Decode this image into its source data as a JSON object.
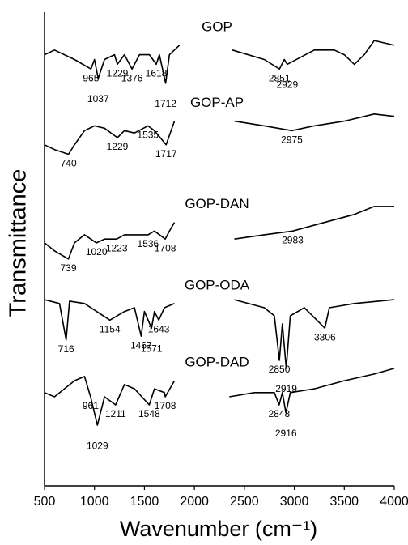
{
  "chart_data": {
    "type": "line",
    "xlabel": "Wavenumber (cm⁻¹)",
    "ylabel": "Transmittance",
    "xlim": [
      500,
      4000
    ],
    "xticks": [
      500,
      1000,
      1500,
      2000,
      2500,
      3000,
      3500,
      4000
    ],
    "ylim": [
      0,
      100
    ],
    "series": [
      {
        "name": "GOP",
        "color": "#000000",
        "x": [
          500,
          600,
          800,
          965,
          1000,
          1037,
          1100,
          1200,
          1229,
          1300,
          1376,
          1450,
          1550,
          1618,
          1650,
          1712,
          1750,
          1850,
          2100,
          2380,
          2700,
          2851,
          2900,
          2929,
          3200,
          3400,
          3500,
          3600,
          3700,
          3800,
          4000
        ],
        "values": [
          91,
          92,
          90,
          88,
          90,
          86,
          90,
          91,
          89,
          91,
          88,
          91,
          91,
          89,
          91,
          85,
          91,
          93,
          null,
          92,
          90,
          88,
          90,
          89,
          92,
          92,
          91,
          89,
          91,
          94,
          93
        ],
        "peaks": [
          965,
          1037,
          1229,
          1376,
          1618,
          1712,
          2851,
          2929
        ]
      },
      {
        "name": "GOP-AP",
        "color": "#000000",
        "x": [
          500,
          600,
          740,
          800,
          900,
          1000,
          1100,
          1229,
          1300,
          1400,
          1535,
          1600,
          1717,
          1750,
          1800,
          2100,
          2400,
          2700,
          2975,
          3200,
          3500,
          3800,
          4000
        ],
        "values": [
          72,
          71,
          70,
          72,
          75,
          76,
          75.5,
          73.5,
          75,
          74.5,
          76,
          75,
          72,
          74,
          77,
          null,
          77,
          76,
          75,
          76,
          77,
          78.5,
          78
        ],
        "peaks": [
          740,
          1229,
          1535,
          1717,
          2975
        ]
      },
      {
        "name": "GOP-DAN",
        "color": "#000000",
        "x": [
          500,
          600,
          739,
          800,
          900,
          1020,
          1100,
          1223,
          1300,
          1536,
          1600,
          1708,
          1750,
          1800,
          2100,
          2400,
          2700,
          2983,
          3300,
          3600,
          3800,
          4000
        ],
        "values": [
          51.3,
          49.6,
          47.9,
          51.3,
          53,
          51.3,
          52.1,
          52.1,
          53,
          53,
          53.8,
          52.1,
          53.8,
          55.6,
          null,
          52.1,
          53,
          53.8,
          55.6,
          57.3,
          59,
          59
        ],
        "peaks": [
          739,
          1020,
          1223,
          1536,
          1708,
          2983
        ]
      },
      {
        "name": "GOP-ODA",
        "color": "#000000",
        "x": [
          500,
          650,
          716,
          750,
          900,
          1154,
          1300,
          1400,
          1467,
          1500,
          1571,
          1600,
          1643,
          1700,
          1800,
          2100,
          2400,
          2700,
          2800,
          2850,
          2880,
          2919,
          2960,
          3100,
          3306,
          3350,
          3600,
          4000
        ],
        "values": [
          39.3,
          38.5,
          30.8,
          39,
          38.5,
          35,
          36.8,
          37.6,
          31.6,
          36.8,
          33.3,
          36.8,
          35,
          37.6,
          38.5,
          null,
          39.3,
          37.6,
          35.9,
          26.5,
          34.2,
          24.8,
          35.9,
          37.6,
          33.3,
          37.6,
          38.5,
          39.3
        ],
        "peaks": [
          716,
          1154,
          1467,
          1571,
          1643,
          2850,
          2919,
          3306
        ]
      },
      {
        "name": "GOP-DAD",
        "color": "#000000",
        "x": [
          500,
          600,
          800,
          900,
          961,
          1029,
          1100,
          1211,
          1300,
          1400,
          1548,
          1600,
          1700,
          1708,
          1800,
          2100,
          2350,
          2600,
          2800,
          2848,
          2880,
          2916,
          2960,
          3200,
          3500,
          3800,
          4000
        ],
        "values": [
          19.7,
          18.8,
          22.2,
          23.1,
          18.8,
          12.8,
          18.8,
          17.1,
          21.4,
          20.5,
          17.1,
          20.5,
          19.7,
          18.8,
          22.2,
          null,
          18.8,
          19.7,
          19.7,
          17.1,
          19.7,
          15.4,
          19.7,
          20.5,
          22.2,
          23.6,
          24.8
        ],
        "peaks": [
          961,
          1029,
          1211,
          1548,
          1708,
          2848,
          2916
        ]
      }
    ]
  }
}
